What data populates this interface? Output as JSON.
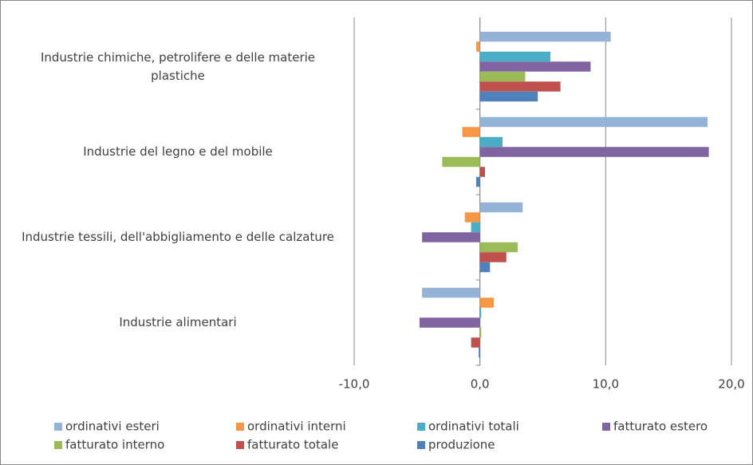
{
  "chart_data": {
    "type": "hbar",
    "categories": [
      "Industrie chimiche, petrolifere e delle materie plastiche",
      "Industrie del legno e del mobile",
      "Industrie tessili, dell'abbigliamento e delle calzature",
      "Industrie alimentari"
    ],
    "series": [
      {
        "name": "ordinativi esteri",
        "color": "#95b3d7",
        "values": [
          10.4,
          18.1,
          3.4,
          -4.6
        ]
      },
      {
        "name": "ordinativi interni",
        "color": "#f79646",
        "values": [
          -0.3,
          -1.4,
          -1.2,
          1.1
        ]
      },
      {
        "name": "ordinativi totali",
        "color": "#4bacc6",
        "values": [
          5.6,
          1.8,
          -0.7,
          0.1
        ]
      },
      {
        "name": "fatturato estero",
        "color": "#8064a2",
        "values": [
          8.8,
          18.2,
          -4.6,
          -4.8
        ]
      },
      {
        "name": "fatturato interno",
        "color": "#9bbb59",
        "values": [
          3.6,
          -3.0,
          3.0,
          0.1
        ]
      },
      {
        "name": "fatturato totale",
        "color": "#c0504d",
        "values": [
          6.4,
          0.4,
          2.1,
          -0.7
        ]
      },
      {
        "name": "produzione",
        "color": "#4f81bd",
        "values": [
          4.6,
          -0.3,
          0.8,
          -0.1
        ]
      }
    ],
    "xlim": [
      -10,
      20
    ],
    "xticks": [
      {
        "value": -10,
        "label": "-10,0"
      },
      {
        "value": 0,
        "label": "0,0"
      },
      {
        "value": 10,
        "label": "10,0"
      },
      {
        "value": 20,
        "label": "20,0"
      }
    ],
    "grid": true,
    "legend": "bottom"
  }
}
